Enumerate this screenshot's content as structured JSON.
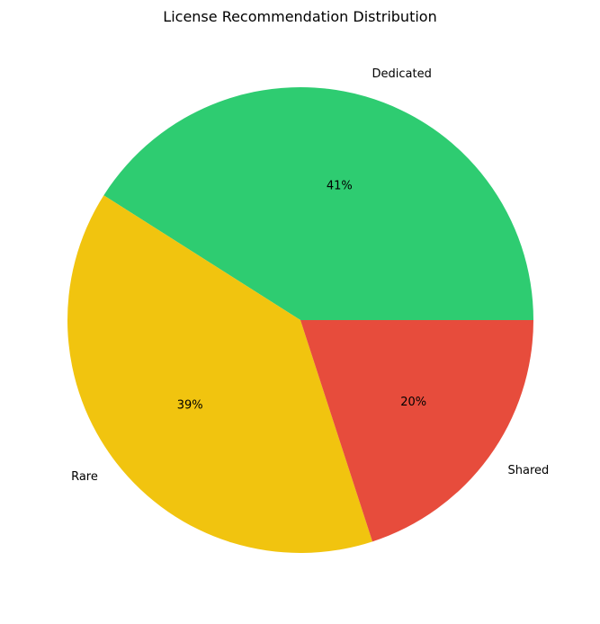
{
  "chart_data": {
    "type": "pie",
    "title": "License Recommendation Distribution",
    "categories": [
      "Dedicated",
      "Rare",
      "Shared"
    ],
    "values": [
      41,
      39,
      20
    ],
    "percent_labels": [
      "41%",
      "39%",
      "20%"
    ],
    "colors": [
      "#2ecc71",
      "#f1c40f",
      "#e74c3c"
    ],
    "start_angle_deg": 0,
    "direction": "counterclockwise",
    "legend": "none"
  }
}
